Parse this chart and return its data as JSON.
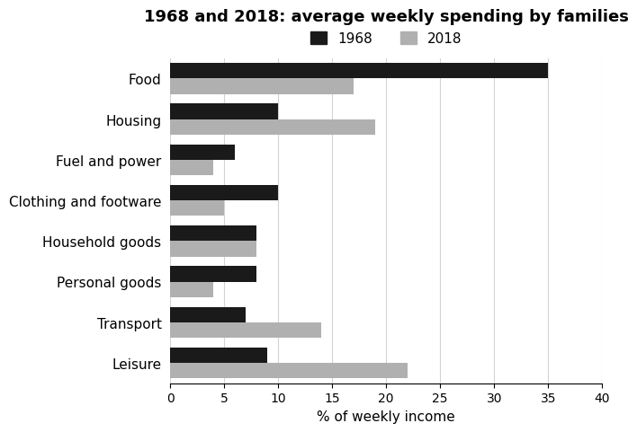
{
  "title": "1968 and 2018: average weekly spending by families",
  "categories": [
    "Food",
    "Housing",
    "Fuel and power",
    "Clothing and footware",
    "Household goods",
    "Personal goods",
    "Transport",
    "Leisure"
  ],
  "values_1968": [
    35,
    10,
    6,
    10,
    8,
    8,
    7,
    9
  ],
  "values_2018": [
    17,
    19,
    4,
    5,
    8,
    4,
    14,
    22
  ],
  "color_1968": "#1a1a1a",
  "color_2018": "#b0b0b0",
  "xlabel": "% of weekly income",
  "xlim": [
    0,
    40
  ],
  "xticks": [
    0,
    5,
    10,
    15,
    20,
    25,
    30,
    35,
    40
  ],
  "legend_labels": [
    "1968",
    "2018"
  ],
  "title_fontsize": 13,
  "label_fontsize": 11,
  "tick_fontsize": 10,
  "bar_height": 0.38
}
